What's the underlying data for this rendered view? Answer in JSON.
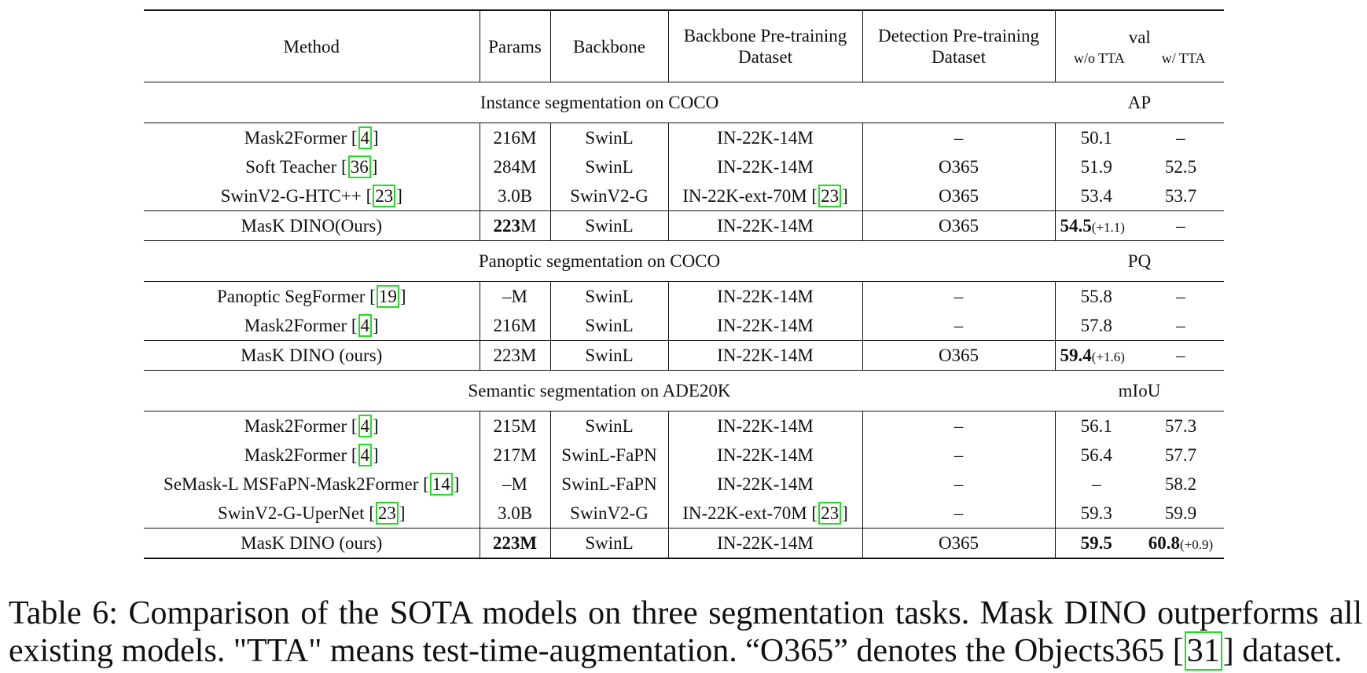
{
  "header": {
    "method": "Method",
    "params": "Params",
    "backbone": "Backbone",
    "backbone_pretrain_1": "Backbone Pre-training",
    "backbone_pretrain_2": "Dataset",
    "detection_pretrain_1": "Detection Pre-training",
    "detection_pretrain_2": "Dataset",
    "val": "val",
    "wo_tta": "w/o TTA",
    "w_tta": "w/ TTA"
  },
  "sections": [
    {
      "title": "Instance segmentation on COCO",
      "metric": "AP",
      "rows": [
        {
          "method": "Mask2Former",
          "cite": "4",
          "params": "216M",
          "backbone": "SwinL",
          "bb_data": "IN-22K-14M",
          "bb_cite": "",
          "det_data": "–",
          "wo": "50.1",
          "wo_delta": "",
          "w": "–",
          "w_delta": ""
        },
        {
          "method": "Soft Teacher",
          "cite": "36",
          "params": "284M",
          "backbone": "SwinL",
          "bb_data": "IN-22K-14M",
          "bb_cite": "",
          "det_data": "O365",
          "wo": "51.9",
          "wo_delta": "",
          "w": "52.5",
          "w_delta": ""
        },
        {
          "method": "SwinV2-G-HTC++",
          "cite": "23",
          "params": "3.0B",
          "backbone": "SwinV2-G",
          "bb_data": "IN-22K-ext-70M",
          "bb_cite": "23",
          "det_data": "O365",
          "wo": "53.4",
          "wo_delta": "",
          "w": "53.7",
          "w_delta": ""
        }
      ],
      "ours": {
        "method": "MasK DINO(Ours)",
        "params_bold": "223",
        "params_rest": "M",
        "backbone": "SwinL",
        "bb_data": "IN-22K-14M",
        "det_data": "O365",
        "wo": "54.5",
        "wo_delta": "(+1.1)",
        "w": "–",
        "w_delta": ""
      }
    },
    {
      "title": "Panoptic segmentation on COCO",
      "metric": "PQ",
      "rows": [
        {
          "method": "Panoptic SegFormer",
          "cite": "19",
          "params": "–M",
          "backbone": "SwinL",
          "bb_data": "IN-22K-14M",
          "bb_cite": "",
          "det_data": "–",
          "wo": "55.8",
          "wo_delta": "",
          "w": "–",
          "w_delta": ""
        },
        {
          "method": "Mask2Former",
          "cite": "4",
          "params": "216M",
          "backbone": "SwinL",
          "bb_data": "IN-22K-14M",
          "bb_cite": "",
          "det_data": "–",
          "wo": "57.8",
          "wo_delta": "",
          "w": "–",
          "w_delta": ""
        }
      ],
      "ours": {
        "method": "MasK DINO (ours)",
        "params_bold": "",
        "params_rest": "223M",
        "backbone": "SwinL",
        "bb_data": "IN-22K-14M",
        "det_data": "O365",
        "wo": "59.4",
        "wo_delta": "(+1.6)",
        "w": "–",
        "w_delta": ""
      }
    },
    {
      "title": "Semantic segmentation on ADE20K",
      "metric": "mIoU",
      "rows": [
        {
          "method": "Mask2Former",
          "cite": "4",
          "params": "215M",
          "backbone": "SwinL",
          "bb_data": "IN-22K-14M",
          "bb_cite": "",
          "det_data": "–",
          "wo": "56.1",
          "wo_delta": "",
          "w": "57.3",
          "w_delta": ""
        },
        {
          "method": "Mask2Former",
          "cite": "4",
          "params": "217M",
          "backbone": "SwinL-FaPN",
          "bb_data": "IN-22K-14M",
          "bb_cite": "",
          "det_data": "–",
          "wo": "56.4",
          "wo_delta": "",
          "w": "57.7",
          "w_delta": ""
        },
        {
          "method": "SeMask-L MSFaPN-Mask2Former",
          "cite": "14",
          "params": "–M",
          "backbone": "SwinL-FaPN",
          "bb_data": "IN-22K-14M",
          "bb_cite": "",
          "det_data": "–",
          "wo": "–",
          "wo_delta": "",
          "w": "58.2",
          "w_delta": ""
        },
        {
          "method": "SwinV2-G-UperNet",
          "cite": "23",
          "params": "3.0B",
          "backbone": "SwinV2-G",
          "bb_data": "IN-22K-ext-70M",
          "bb_cite": "23",
          "det_data": "–",
          "wo": "59.3",
          "wo_delta": "",
          "w": "59.9",
          "w_delta": ""
        }
      ],
      "ours": {
        "method": "MasK DINO (ours)",
        "params_bold": "223M",
        "params_rest": "",
        "backbone": "SwinL",
        "bb_data": "IN-22K-14M",
        "det_data": "O365",
        "wo": "59.5",
        "wo_delta": "",
        "w": "60.8",
        "w_delta": "(+0.9)"
      }
    }
  ],
  "caption": {
    "text_1": "Table 6: Comparison of the SOTA models on three segmentation tasks. Mask DINO outperforms all existing models. \"TTA\" means test-time-augmentation. “O365” denotes the Objects365 [",
    "cite": "31",
    "text_2": "] dataset."
  }
}
